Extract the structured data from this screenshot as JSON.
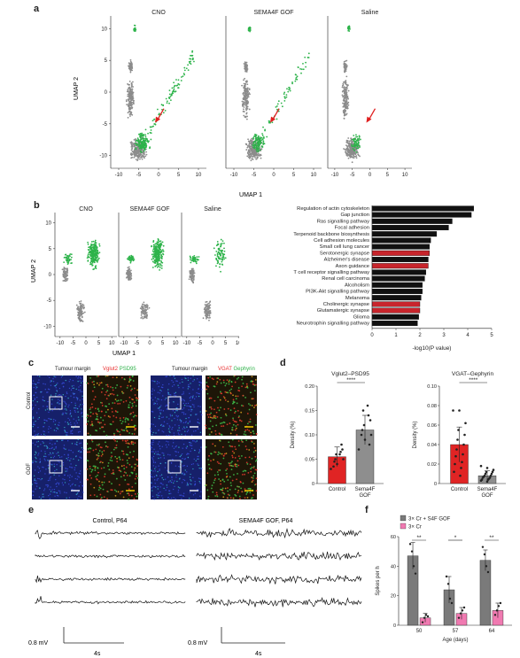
{
  "panels": {
    "a": "a",
    "b": "b",
    "c": "c",
    "d": "d",
    "e": "e",
    "f": "f"
  },
  "panel_a": {
    "titles": [
      "CNO",
      "SEMA4F GOF",
      "Saline"
    ],
    "ylabel": "UMAP 2",
    "xlabel": "UMAP 1",
    "yticks": [
      "10",
      "5",
      "0",
      "-5",
      "-10"
    ],
    "xticks": [
      "-10",
      "-5",
      "0",
      "5",
      "10"
    ]
  },
  "panel_b_umap": {
    "titles": [
      "CNO",
      "SEMA4F GOF",
      "Saline"
    ],
    "ylabel": "UMAP 2",
    "xlabel": "UMAP 1",
    "yticks": [
      "10",
      "5",
      "0",
      "-5",
      "-10"
    ],
    "xticks": [
      "-10",
      "-5",
      "0",
      "5",
      "10"
    ]
  },
  "panel_c": {
    "titles": [
      {
        "a": "Tumour margin",
        "b": "Vglut2",
        "c": "PSD95"
      },
      {
        "a": "Tumour margin",
        "b": "VGAT",
        "c": "Gephyrin"
      }
    ],
    "rows": [
      "Control",
      "GOF"
    ],
    "colors": {
      "red": "#e83030",
      "green": "#2fb24a",
      "blue": "#2a3fb8"
    }
  },
  "chart_data": [
    {
      "type": "bar",
      "title": "",
      "xlabel": "-log10(P value)",
      "ylabel": "",
      "categories": [
        "Regulation of actin cytoskeleton",
        "Gap junction",
        "Ras signalling pathway",
        "Focal adhesion",
        "Terpenoid backbone biosynthesis",
        "Cell adhesion molecules",
        "Small cell lung cancer",
        "Serotonergic synapse",
        "Alzheimer's disease",
        "Axon guidance",
        "T cell receptor signalling pathway",
        "Renal cell carcinoma",
        "Alcoholism",
        "PI3K-Akt signalling pathway",
        "Melanoma",
        "Cholinergic synapse",
        "Glutamatergic synapse",
        "Glioma",
        "Neurotrophin signalling pathway"
      ],
      "values": [
        4.25,
        4.15,
        3.35,
        3.2,
        2.7,
        2.45,
        2.4,
        2.4,
        2.35,
        2.35,
        2.25,
        2.2,
        2.1,
        2.1,
        2.05,
        2.0,
        2.0,
        1.95,
        1.9
      ],
      "highlight": [
        false,
        false,
        false,
        false,
        false,
        false,
        false,
        true,
        false,
        true,
        false,
        false,
        false,
        false,
        false,
        true,
        true,
        false,
        false
      ],
      "xlim": [
        0,
        5
      ],
      "xticks": [
        "0",
        "1",
        "2",
        "3",
        "4",
        "5"
      ],
      "colors": {
        "default": "#111111",
        "highlight": "#c8252c"
      }
    },
    {
      "type": "bar",
      "title": "Vglut2–PSD95",
      "ylabel": "Density (%)",
      "categories": [
        "Control",
        "Sema4F GOF"
      ],
      "values": [
        0.055,
        0.11
      ],
      "errors": [
        0.02,
        0.03
      ],
      "ylim": [
        0,
        0.2
      ],
      "yticks": [
        "0",
        "0.05",
        "0.10",
        "0.15",
        "0.20"
      ],
      "significance": "****",
      "points": [
        [
          0.03,
          0.04,
          0.05,
          0.06,
          0.07,
          0.05,
          0.08,
          0.045,
          0.065,
          0.035,
          0.06
        ],
        [
          0.07,
          0.09,
          0.1,
          0.12,
          0.13,
          0.15,
          0.08,
          0.11,
          0.14,
          0.1,
          0.16
        ]
      ],
      "colors": [
        "#e02424",
        "#8e8e8e"
      ]
    },
    {
      "type": "bar",
      "title": "VGAT–Gephyrin",
      "ylabel": "Density (%)",
      "categories": [
        "Control",
        "Sema4F GOF"
      ],
      "values": [
        0.04,
        0.008
      ],
      "errors": [
        0.018,
        0.005
      ],
      "ylim": [
        0,
        0.1
      ],
      "yticks": [
        "0",
        "0.02",
        "0.04",
        "0.06",
        "0.08",
        "0.10"
      ],
      "significance": "****",
      "points": [
        [
          0.075,
          0.075,
          0.062,
          0.055,
          0.05,
          0.045,
          0.04,
          0.035,
          0.03,
          0.028,
          0.022,
          0.02,
          0.016,
          0.012,
          0.008
        ],
        [
          0.018,
          0.016,
          0.014,
          0.012,
          0.012,
          0.01,
          0.01,
          0.008,
          0.008,
          0.007,
          0.006,
          0.006,
          0.005,
          0.004,
          0.004,
          0.003,
          0.002
        ]
      ],
      "colors": [
        "#e02424",
        "#8e8e8e"
      ]
    },
    {
      "type": "bar",
      "title": "",
      "ylabel": "Spikes per h",
      "xlabel": "Age (days)",
      "categories": [
        "50",
        "57",
        "64"
      ],
      "ylim": [
        0,
        60
      ],
      "yticks": [
        "0",
        "20",
        "40",
        "60"
      ],
      "series": [
        {
          "name": "3× Cr + S4F GOF",
          "values": [
            47,
            24,
            44
          ],
          "errors": [
            9,
            9,
            7
          ],
          "points": [
            [
              55,
              50,
              40,
              35
            ],
            [
              33,
              28,
              18,
              15
            ],
            [
              53,
              48,
              40,
              36
            ]
          ]
        },
        {
          "name": "3× Cr",
          "values": [
            5,
            8,
            10
          ],
          "errors": [
            3,
            4,
            5
          ],
          "points": [
            [
              2,
              5,
              7,
              6
            ],
            [
              5,
              8,
              10,
              12
            ],
            [
              7,
              10,
              13,
              15
            ]
          ]
        }
      ],
      "significance": [
        "**",
        "*",
        "**"
      ],
      "colors": [
        "#7a7a7a",
        "#f07ab1"
      ]
    }
  ],
  "panel_e": {
    "left_title": "Control, P64",
    "right_title": "SEMA4F GOF, P64",
    "scale_mv": "0.8 mV",
    "scale_s": "4s"
  }
}
